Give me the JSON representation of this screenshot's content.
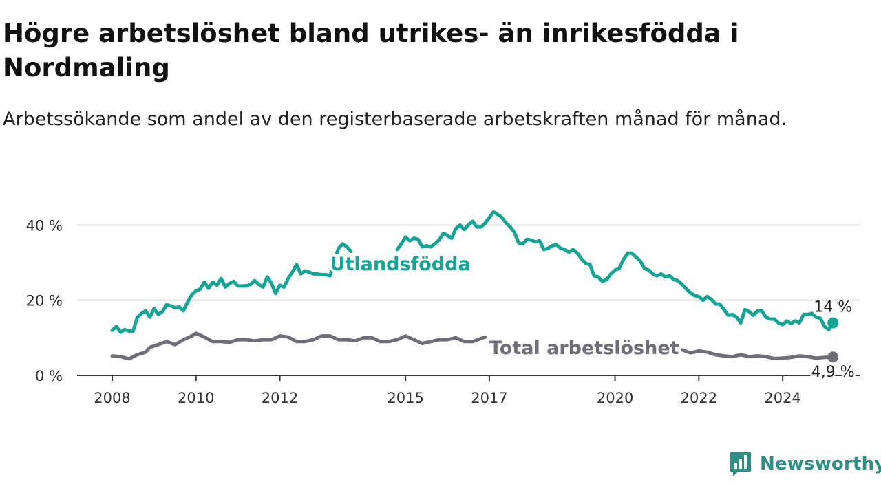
{
  "title": "Högre arbetslöshet bland utrikes- än inrikesfödda i Nordmaling",
  "subtitle": "Arbetssökande som andel av den registerbaserade arbetskraften månad för månad.",
  "brand": {
    "name": "Newsworthy",
    "color": "#2e8f84",
    "icon": "bar-chart-speech-icon"
  },
  "chart_data": {
    "type": "line",
    "ylim": [
      0,
      45
    ],
    "yticks": [
      0,
      20,
      40
    ],
    "ytick_labels": [
      "0 %",
      "20 %",
      "40 %"
    ],
    "xlim": [
      2008.0,
      2025.0
    ],
    "xticks": [
      2008,
      2010,
      2012,
      2015,
      2017,
      2020,
      2022,
      2024
    ],
    "xtick_labels": [
      "2008",
      "2010",
      "2012",
      "2015",
      "2017",
      "2020",
      "2022",
      "2024"
    ],
    "grid": true,
    "series": [
      {
        "name": "Utlandsfödda",
        "color": "#14a595",
        "end_label": "14 %",
        "points": [
          [
            2008.0,
            12.0
          ],
          [
            2008.1,
            13.0
          ],
          [
            2008.2,
            11.5
          ],
          [
            2008.3,
            12.2
          ],
          [
            2008.4,
            11.8
          ],
          [
            2008.5,
            11.8
          ],
          [
            2008.6,
            15.5
          ],
          [
            2008.7,
            16.5
          ],
          [
            2008.8,
            17.2
          ],
          [
            2008.9,
            15.5
          ],
          [
            2009.0,
            17.8
          ],
          [
            2009.1,
            16.2
          ],
          [
            2009.2,
            17.0
          ],
          [
            2009.3,
            18.8
          ],
          [
            2009.4,
            18.5
          ],
          [
            2009.5,
            18.0
          ],
          [
            2009.6,
            18.2
          ],
          [
            2009.7,
            17.2
          ],
          [
            2009.8,
            19.5
          ],
          [
            2009.9,
            21.5
          ],
          [
            2010.0,
            22.5
          ],
          [
            2010.1,
            23.0
          ],
          [
            2010.2,
            24.8
          ],
          [
            2010.3,
            23.2
          ],
          [
            2010.4,
            24.8
          ],
          [
            2010.5,
            24.0
          ],
          [
            2010.6,
            25.8
          ],
          [
            2010.7,
            23.5
          ],
          [
            2010.8,
            24.5
          ],
          [
            2010.9,
            25.0
          ],
          [
            2011.0,
            23.8
          ],
          [
            2011.1,
            23.8
          ],
          [
            2011.2,
            23.8
          ],
          [
            2011.3,
            24.2
          ],
          [
            2011.4,
            25.2
          ],
          [
            2011.5,
            24.2
          ],
          [
            2011.6,
            23.5
          ],
          [
            2011.7,
            26.2
          ],
          [
            2011.8,
            24.5
          ],
          [
            2011.9,
            21.8
          ],
          [
            2012.0,
            24.0
          ],
          [
            2012.1,
            23.5
          ],
          [
            2012.2,
            25.8
          ],
          [
            2012.3,
            27.5
          ],
          [
            2012.4,
            29.5
          ],
          [
            2012.5,
            27.0
          ],
          [
            2012.6,
            27.8
          ],
          [
            2012.7,
            27.5
          ],
          [
            2012.8,
            27.0
          ],
          [
            2012.9,
            27.0
          ],
          [
            2013.0,
            26.8
          ],
          [
            2013.1,
            26.8
          ],
          [
            2013.2,
            26.5
          ],
          [
            2013.3,
            30.5
          ],
          [
            2013.4,
            33.8
          ],
          [
            2013.5,
            35.0
          ],
          [
            2013.6,
            34.2
          ],
          [
            2013.7,
            33.0
          ],
          [
            2014.8,
            33.5
          ],
          [
            2014.9,
            35.0
          ],
          [
            2015.0,
            36.8
          ],
          [
            2015.1,
            35.8
          ],
          [
            2015.2,
            36.5
          ],
          [
            2015.3,
            36.2
          ],
          [
            2015.4,
            34.2
          ],
          [
            2015.5,
            34.5
          ],
          [
            2015.6,
            34.2
          ],
          [
            2015.7,
            35.0
          ],
          [
            2015.8,
            36.0
          ],
          [
            2015.9,
            37.8
          ],
          [
            2016.0,
            37.2
          ],
          [
            2016.1,
            36.5
          ],
          [
            2016.2,
            39.0
          ],
          [
            2016.3,
            40.0
          ],
          [
            2016.4,
            38.8
          ],
          [
            2016.5,
            40.0
          ],
          [
            2016.6,
            41.0
          ],
          [
            2016.7,
            39.5
          ],
          [
            2016.8,
            39.5
          ],
          [
            2016.9,
            40.5
          ],
          [
            2017.0,
            42.0
          ],
          [
            2017.1,
            43.5
          ],
          [
            2017.2,
            42.8
          ],
          [
            2017.3,
            42.0
          ],
          [
            2017.4,
            40.5
          ],
          [
            2017.5,
            39.5
          ],
          [
            2017.6,
            38.0
          ],
          [
            2017.7,
            35.2
          ],
          [
            2017.8,
            35.0
          ],
          [
            2017.9,
            36.2
          ],
          [
            2018.0,
            36.0
          ],
          [
            2018.1,
            35.5
          ],
          [
            2018.2,
            35.8
          ],
          [
            2018.3,
            33.5
          ],
          [
            2018.4,
            33.8
          ],
          [
            2018.5,
            34.5
          ],
          [
            2018.6,
            34.8
          ],
          [
            2018.7,
            33.8
          ],
          [
            2018.8,
            33.5
          ],
          [
            2018.9,
            32.8
          ],
          [
            2019.0,
            33.5
          ],
          [
            2019.1,
            32.5
          ],
          [
            2019.2,
            31.0
          ],
          [
            2019.3,
            29.8
          ],
          [
            2019.4,
            29.5
          ],
          [
            2019.5,
            26.5
          ],
          [
            2019.6,
            26.2
          ],
          [
            2019.7,
            25.0
          ],
          [
            2019.8,
            25.5
          ],
          [
            2019.9,
            27.0
          ],
          [
            2020.0,
            28.0
          ],
          [
            2020.1,
            28.5
          ],
          [
            2020.2,
            30.8
          ],
          [
            2020.3,
            32.5
          ],
          [
            2020.4,
            32.5
          ],
          [
            2020.5,
            31.5
          ],
          [
            2020.6,
            30.5
          ],
          [
            2020.7,
            28.5
          ],
          [
            2020.8,
            28.0
          ],
          [
            2020.9,
            27.0
          ],
          [
            2021.0,
            26.5
          ],
          [
            2021.1,
            27.0
          ],
          [
            2021.2,
            26.2
          ],
          [
            2021.3,
            26.5
          ],
          [
            2021.4,
            25.5
          ],
          [
            2021.5,
            25.2
          ],
          [
            2021.6,
            24.2
          ],
          [
            2021.7,
            23.0
          ],
          [
            2021.8,
            22.0
          ],
          [
            2021.9,
            21.2
          ],
          [
            2022.0,
            21.0
          ],
          [
            2022.1,
            20.0
          ],
          [
            2022.2,
            21.0
          ],
          [
            2022.3,
            20.2
          ],
          [
            2022.4,
            19.0
          ],
          [
            2022.5,
            19.0
          ],
          [
            2022.6,
            17.5
          ],
          [
            2022.7,
            16.0
          ],
          [
            2022.8,
            16.2
          ],
          [
            2022.9,
            15.5
          ],
          [
            2023.0,
            14.0
          ],
          [
            2023.1,
            17.5
          ],
          [
            2023.2,
            17.0
          ],
          [
            2023.3,
            16.0
          ],
          [
            2023.4,
            17.2
          ],
          [
            2023.5,
            17.2
          ],
          [
            2023.6,
            15.5
          ],
          [
            2023.7,
            15.0
          ],
          [
            2023.8,
            15.0
          ],
          [
            2023.9,
            14.0
          ],
          [
            2024.0,
            13.5
          ],
          [
            2024.1,
            14.5
          ],
          [
            2024.2,
            13.8
          ],
          [
            2024.3,
            14.5
          ],
          [
            2024.4,
            14.0
          ],
          [
            2024.5,
            16.2
          ],
          [
            2024.6,
            16.2
          ],
          [
            2024.7,
            16.5
          ],
          [
            2024.8,
            15.5
          ],
          [
            2024.9,
            15.2
          ],
          [
            2025.0,
            13.0
          ],
          [
            2025.1,
            12.2
          ],
          [
            2025.2,
            14.0
          ]
        ]
      },
      {
        "name": "Total arbetslöshet",
        "color": "#6e6e78",
        "end_label": "4,9 %",
        "points": [
          [
            2008.0,
            5.2
          ],
          [
            2008.2,
            5.0
          ],
          [
            2008.4,
            4.4
          ],
          [
            2008.6,
            5.5
          ],
          [
            2008.8,
            6.2
          ],
          [
            2008.9,
            7.5
          ],
          [
            2009.1,
            8.2
          ],
          [
            2009.3,
            9.0
          ],
          [
            2009.5,
            8.2
          ],
          [
            2009.7,
            9.5
          ],
          [
            2009.9,
            10.5
          ],
          [
            2010.0,
            11.2
          ],
          [
            2010.2,
            10.2
          ],
          [
            2010.4,
            9.0
          ],
          [
            2010.6,
            9.0
          ],
          [
            2010.8,
            8.8
          ],
          [
            2011.0,
            9.5
          ],
          [
            2011.2,
            9.5
          ],
          [
            2011.4,
            9.2
          ],
          [
            2011.6,
            9.5
          ],
          [
            2011.8,
            9.5
          ],
          [
            2012.0,
            10.5
          ],
          [
            2012.2,
            10.2
          ],
          [
            2012.4,
            9.0
          ],
          [
            2012.6,
            9.0
          ],
          [
            2012.8,
            9.5
          ],
          [
            2013.0,
            10.5
          ],
          [
            2013.2,
            10.5
          ],
          [
            2013.4,
            9.5
          ],
          [
            2013.6,
            9.5
          ],
          [
            2013.8,
            9.2
          ],
          [
            2014.0,
            10.0
          ],
          [
            2014.2,
            10.0
          ],
          [
            2014.4,
            9.0
          ],
          [
            2014.6,
            9.0
          ],
          [
            2014.8,
            9.5
          ],
          [
            2015.0,
            10.5
          ],
          [
            2015.2,
            9.5
          ],
          [
            2015.4,
            8.5
          ],
          [
            2015.6,
            9.0
          ],
          [
            2015.8,
            9.5
          ],
          [
            2016.0,
            9.5
          ],
          [
            2016.2,
            10.0
          ],
          [
            2016.4,
            9.0
          ],
          [
            2016.6,
            9.0
          ],
          [
            2016.8,
            9.8
          ],
          [
            2016.9,
            10.2
          ],
          [
            2021.6,
            6.8
          ],
          [
            2021.8,
            6.0
          ],
          [
            2022.0,
            6.5
          ],
          [
            2022.2,
            6.2
          ],
          [
            2022.4,
            5.5
          ],
          [
            2022.6,
            5.2
          ],
          [
            2022.8,
            5.0
          ],
          [
            2023.0,
            5.5
          ],
          [
            2023.2,
            5.0
          ],
          [
            2023.4,
            5.2
          ],
          [
            2023.6,
            5.0
          ],
          [
            2023.8,
            4.5
          ],
          [
            2024.0,
            4.6
          ],
          [
            2024.2,
            4.8
          ],
          [
            2024.4,
            5.2
          ],
          [
            2024.6,
            5.0
          ],
          [
            2024.8,
            4.6
          ],
          [
            2025.0,
            4.8
          ],
          [
            2025.2,
            4.9
          ]
        ]
      }
    ],
    "annotations": [
      {
        "text": "Utlandsfödda",
        "series": 0,
        "x": 2013.2,
        "y": 29.8
      },
      {
        "text": "Total arbetslöshet",
        "series": 1,
        "x": 2017.0,
        "y": 7.5
      }
    ]
  }
}
